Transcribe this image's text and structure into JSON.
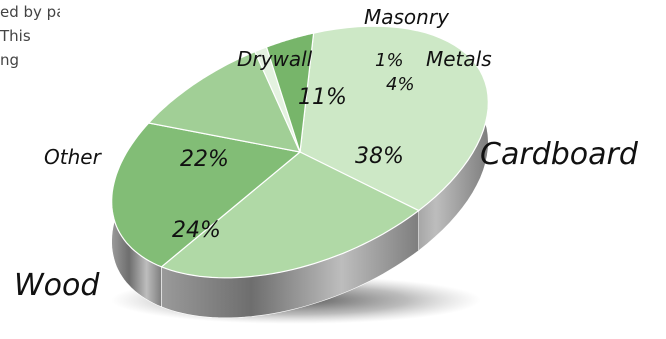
{
  "page_text": {
    "line1": "ed by passed",
    "line2": "This",
    "line3": "ng"
  },
  "chart_data": {
    "type": "pie",
    "style": "3d-exploded",
    "categories": [
      "Cardboard",
      "Wood",
      "Other",
      "Drywall",
      "Masonry",
      "Metals"
    ],
    "values": [
      38,
      24,
      22,
      11,
      1,
      4
    ],
    "value_labels": [
      "38%",
      "24%",
      "22%",
      "11%",
      "1%",
      "4%"
    ],
    "colors": [
      "#cde8c6",
      "#b0d9a6",
      "#82bd76",
      "#a1cf96",
      "#e4f2e0",
      "#77b56a"
    ],
    "side_colors": [
      "#8f8f8f",
      "#7a7a7a",
      "#6a6a6a",
      "#7d7d7d",
      "#8a8a8a",
      "#727272"
    ]
  }
}
